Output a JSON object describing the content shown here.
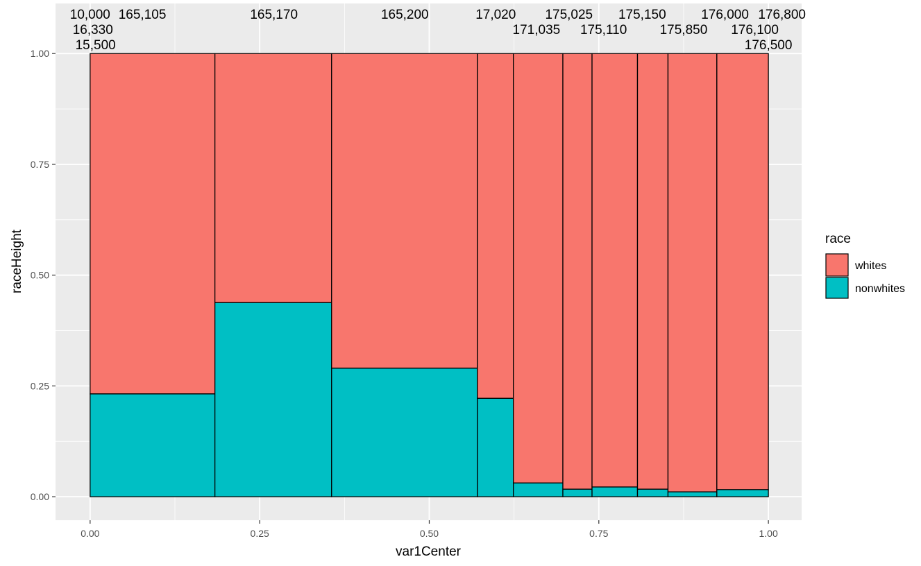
{
  "chart_data": {
    "type": "bar",
    "subtype": "mosaic",
    "xlabel": "var1Center",
    "ylabel": "raceHeight",
    "xlim": [
      -0.051,
      1.049
    ],
    "ylim": [
      -0.053,
      1.113
    ],
    "xticks": [
      "0.00",
      "0.25",
      "0.50",
      "0.75",
      "1.00"
    ],
    "yticks": [
      "0.00",
      "0.25",
      "0.50",
      "0.75",
      "1.00"
    ],
    "legend": {
      "title": "race",
      "position": "right",
      "entries": [
        "whites",
        "nonwhites"
      ]
    },
    "colors": {
      "whites": "#F8766D",
      "nonwhites": "#00BFC4",
      "panel": "#EBEBEB"
    },
    "bins": [
      {
        "xmin": 0.0,
        "xmax": 0.184,
        "nonwhites": 0.232
      },
      {
        "xmin": 0.184,
        "xmax": 0.356,
        "nonwhites": 0.438
      },
      {
        "xmin": 0.356,
        "xmax": 0.571,
        "nonwhites": 0.29
      },
      {
        "xmin": 0.571,
        "xmax": 0.624,
        "nonwhites": 0.222
      },
      {
        "xmin": 0.624,
        "xmax": 0.697,
        "nonwhites": 0.031
      },
      {
        "xmin": 0.697,
        "xmax": 0.74,
        "nonwhites": 0.017
      },
      {
        "xmin": 0.74,
        "xmax": 0.807,
        "nonwhites": 0.022
      },
      {
        "xmin": 0.807,
        "xmax": 0.852,
        "nonwhites": 0.017
      },
      {
        "xmin": 0.852,
        "xmax": 0.924,
        "nonwhites": 0.011
      },
      {
        "xmin": 0.924,
        "xmax": 1.0,
        "nonwhites": 0.016
      }
    ],
    "top_labels": [
      {
        "x": 0.0,
        "text": "10,000"
      },
      {
        "x": 0.004,
        "text": "16,330"
      },
      {
        "x": 0.008,
        "text": "15,500"
      },
      {
        "x": 0.077,
        "text": "165,105"
      },
      {
        "x": 0.271,
        "text": "165,170"
      },
      {
        "x": 0.464,
        "text": "165,200"
      },
      {
        "x": 0.598,
        "text": "17,020"
      },
      {
        "x": 0.658,
        "text": "171,035"
      },
      {
        "x": 0.706,
        "text": "175,025"
      },
      {
        "x": 0.757,
        "text": "175,110"
      },
      {
        "x": 0.814,
        "text": "175,150"
      },
      {
        "x": 0.875,
        "text": "175,850"
      },
      {
        "x": 0.936,
        "text": "176,000"
      },
      {
        "x": 0.98,
        "text": "176,100"
      },
      {
        "x": 1.0,
        "text": "176,500"
      },
      {
        "x": 1.02,
        "text": "176,800"
      }
    ]
  }
}
